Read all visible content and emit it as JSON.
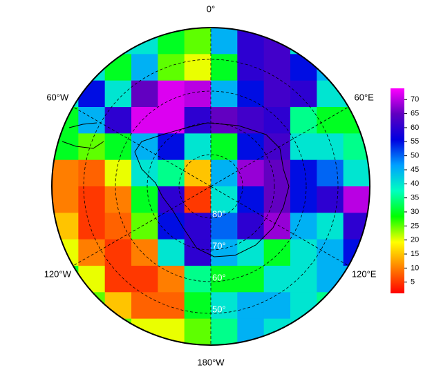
{
  "map": {
    "meridians": [
      {
        "value": 0,
        "label": "0°"
      },
      {
        "value": 60,
        "label": "60°E"
      },
      {
        "value": 120,
        "label": "120°E"
      },
      {
        "value": 180,
        "label": "180°W"
      },
      {
        "value": -120,
        "label": "120°W"
      },
      {
        "value": -60,
        "label": "60°W"
      }
    ],
    "parallels": [
      {
        "value": 80,
        "label": "80°"
      },
      {
        "value": 70,
        "label": "70°"
      },
      {
        "value": 60,
        "label": "60°"
      },
      {
        "value": 50,
        "label": "50°"
      }
    ],
    "latlim": [
      90,
      40
    ],
    "grid": [
      [
        40,
        40,
        40,
        40,
        30,
        25,
        45,
        60,
        62,
        40,
        40,
        40
      ],
      [
        40,
        40,
        30,
        45,
        25,
        20,
        30,
        60,
        62,
        55,
        45,
        40
      ],
      [
        40,
        55,
        40,
        65,
        72,
        70,
        45,
        55,
        62,
        60,
        40,
        40
      ],
      [
        30,
        45,
        60,
        72,
        72,
        60,
        65,
        62,
        60,
        35,
        30,
        30
      ],
      [
        30,
        25,
        30,
        45,
        55,
        40,
        30,
        55,
        62,
        40,
        40,
        35
      ],
      [
        10,
        8,
        20,
        40,
        35,
        15,
        45,
        68,
        65,
        55,
        50,
        40
      ],
      [
        10,
        5,
        10,
        30,
        60,
        5,
        40,
        55,
        65,
        55,
        60,
        70
      ],
      [
        15,
        5,
        8,
        25,
        55,
        60,
        50,
        60,
        68,
        45,
        40,
        60
      ],
      [
        20,
        10,
        5,
        10,
        40,
        60,
        45,
        40,
        30,
        40,
        45,
        55
      ],
      [
        30,
        20,
        5,
        5,
        10,
        35,
        30,
        30,
        40,
        40,
        45,
        45
      ],
      [
        30,
        25,
        15,
        8,
        8,
        30,
        40,
        45,
        45,
        40,
        35,
        40
      ],
      [
        30,
        30,
        25,
        20,
        20,
        25,
        35,
        45,
        40,
        40,
        35,
        35
      ]
    ],
    "colorbar": {
      "lim": [
        1,
        74
      ],
      "ticks": [
        5,
        10,
        15,
        20,
        25,
        30,
        35,
        40,
        45,
        50,
        55,
        60,
        65,
        70
      ],
      "colors": [
        "#ff0000",
        "#ff8000",
        "#ffff00",
        "#00ff00",
        "#00ffc0",
        "#00a0ff",
        "#0000e0",
        "#6000c0",
        "#ff00ff"
      ]
    }
  }
}
